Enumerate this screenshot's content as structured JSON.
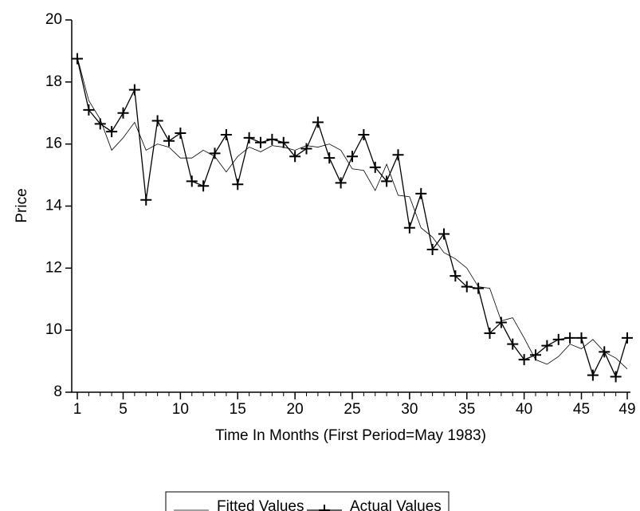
{
  "chart_data": {
    "type": "line",
    "x_label": "Time In Months (First Period=May 1983)",
    "y_label": "Price",
    "x": [
      1,
      2,
      3,
      4,
      5,
      6,
      7,
      8,
      9,
      10,
      11,
      12,
      13,
      14,
      15,
      16,
      17,
      18,
      19,
      20,
      21,
      22,
      23,
      24,
      25,
      26,
      27,
      28,
      29,
      30,
      31,
      32,
      33,
      34,
      35,
      36,
      37,
      38,
      39,
      40,
      41,
      42,
      43,
      44,
      45,
      46,
      47,
      48,
      49
    ],
    "series": [
      {
        "name": "Fitted Values",
        "color": "#000000",
        "marker": "none",
        "values": [
          18.8,
          17.4,
          16.8,
          15.8,
          16.2,
          16.7,
          15.8,
          16.0,
          15.9,
          15.55,
          15.55,
          15.8,
          15.6,
          15.1,
          15.6,
          15.9,
          15.75,
          15.95,
          15.9,
          15.8,
          15.95,
          15.9,
          16.0,
          15.8,
          15.2,
          15.15,
          14.5,
          15.35,
          14.35,
          14.3,
          13.3,
          13.0,
          12.5,
          12.3,
          12.0,
          11.4,
          11.35,
          10.3,
          10.4,
          9.75,
          9.05,
          8.9,
          9.15,
          9.55,
          9.4,
          9.7,
          9.3,
          9.1,
          8.75
        ]
      },
      {
        "name": "Actual Values",
        "color": "#000000",
        "marker": "plus",
        "values": [
          18.75,
          17.1,
          16.65,
          16.4,
          17.0,
          17.75,
          14.2,
          16.75,
          16.1,
          16.35,
          14.8,
          14.65,
          15.7,
          16.3,
          14.7,
          16.2,
          16.05,
          16.15,
          16.05,
          15.6,
          15.85,
          16.7,
          15.55,
          14.75,
          15.6,
          16.3,
          15.25,
          14.8,
          15.65,
          13.3,
          14.4,
          12.6,
          13.1,
          11.75,
          11.4,
          11.35,
          9.9,
          10.25,
          9.55,
          9.05,
          9.2,
          9.5,
          9.7,
          9.75,
          9.75,
          8.55,
          9.3,
          8.5,
          9.75
        ]
      }
    ],
    "xlim": [
      1,
      49
    ],
    "xticks": [
      1,
      5,
      10,
      15,
      20,
      25,
      30,
      35,
      40,
      45,
      49
    ],
    "ylim": [
      8,
      20
    ],
    "yticks": [
      8,
      10,
      12,
      14,
      16,
      18,
      20
    ],
    "grid": false,
    "legend": "bottom"
  }
}
